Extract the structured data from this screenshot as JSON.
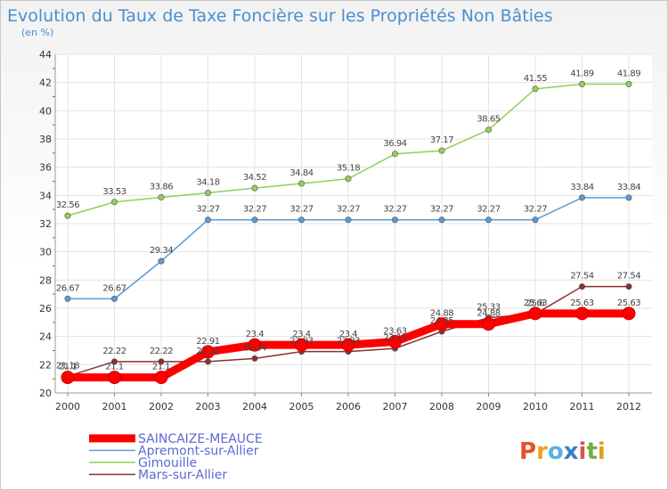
{
  "header": {
    "title": "Evolution du Taux de Taxe Foncière sur les Propriétés Non Bâties",
    "subtitle": "(en %)"
  },
  "logo": {
    "text": "Proxiti",
    "colors": [
      "#e8502a",
      "#f0a020",
      "#5bb0e0",
      "#3a7fc8",
      "#e05050",
      "#70b040",
      "#e0a020"
    ]
  },
  "chart_data": {
    "type": "line",
    "title": "Evolution du Taux de Taxe Foncière sur les Propriétés Non Bâties",
    "ylabel": "(en %)",
    "xlabel": "",
    "x": [
      "2000",
      "2001",
      "2002",
      "2003",
      "2004",
      "2005",
      "2006",
      "2007",
      "2008",
      "2009",
      "2010",
      "2011",
      "2012"
    ],
    "ylim": [
      20,
      44
    ],
    "yticks": [
      "20",
      "22",
      "24",
      "26",
      "28",
      "30",
      "32",
      "34",
      "36",
      "38",
      "40",
      "42",
      "44"
    ],
    "grid": true,
    "legend_position": "bottom-left",
    "series": [
      {
        "name": "SAINCAIZE-MEAUCE",
        "color": "#ff0000",
        "values": [
          21.1,
          21.1,
          21.1,
          22.91,
          23.4,
          23.4,
          23.4,
          23.63,
          24.88,
          24.88,
          25.63,
          25.63,
          25.63
        ],
        "labels": [
          "21.1",
          "21.1",
          "21.1",
          "22.91",
          "23.4",
          "23.4",
          "23.4",
          "23.63",
          "24.88",
          "24.88",
          "25.63",
          "25.63",
          "25.63"
        ]
      },
      {
        "name": "Apremont-sur-Allier",
        "color": "#5b9bd5",
        "values": [
          26.67,
          26.67,
          29.34,
          32.27,
          32.27,
          32.27,
          32.27,
          32.27,
          32.27,
          32.27,
          32.27,
          33.84,
          33.84
        ],
        "labels": [
          "26.67",
          "26.67",
          "29.34",
          "32.27",
          "32.27",
          "32.27",
          "32.27",
          "32.27",
          "32.27",
          "32.27",
          "32.27",
          "33.84",
          "33.84"
        ]
      },
      {
        "name": "Gimouille",
        "color": "#8fd05a",
        "values": [
          32.56,
          33.53,
          33.86,
          34.18,
          34.52,
          34.84,
          35.18,
          36.94,
          37.17,
          38.65,
          41.55,
          41.89,
          41.89
        ],
        "labels": [
          "32.56",
          "33.53",
          "33.86",
          "34.18",
          "34.52",
          "34.84",
          "35.18",
          "36.94",
          "37.17",
          "38.65",
          "41.55",
          "41.89",
          "41.89"
        ]
      },
      {
        "name": "Mars-sur-Allier",
        "color": "#8b3030",
        "values": [
          21.18,
          22.22,
          22.22,
          22.22,
          22.44,
          22.93,
          22.93,
          23.15,
          24.35,
          25.33,
          25.6,
          27.54,
          27.54
        ],
        "labels": [
          "21.18",
          "22.22",
          "22.22",
          "22.22",
          "22.44",
          "22.93",
          "22.93",
          "23.15",
          "24.35",
          "25.33",
          "25.6",
          "27.54",
          "27.54"
        ]
      }
    ]
  }
}
